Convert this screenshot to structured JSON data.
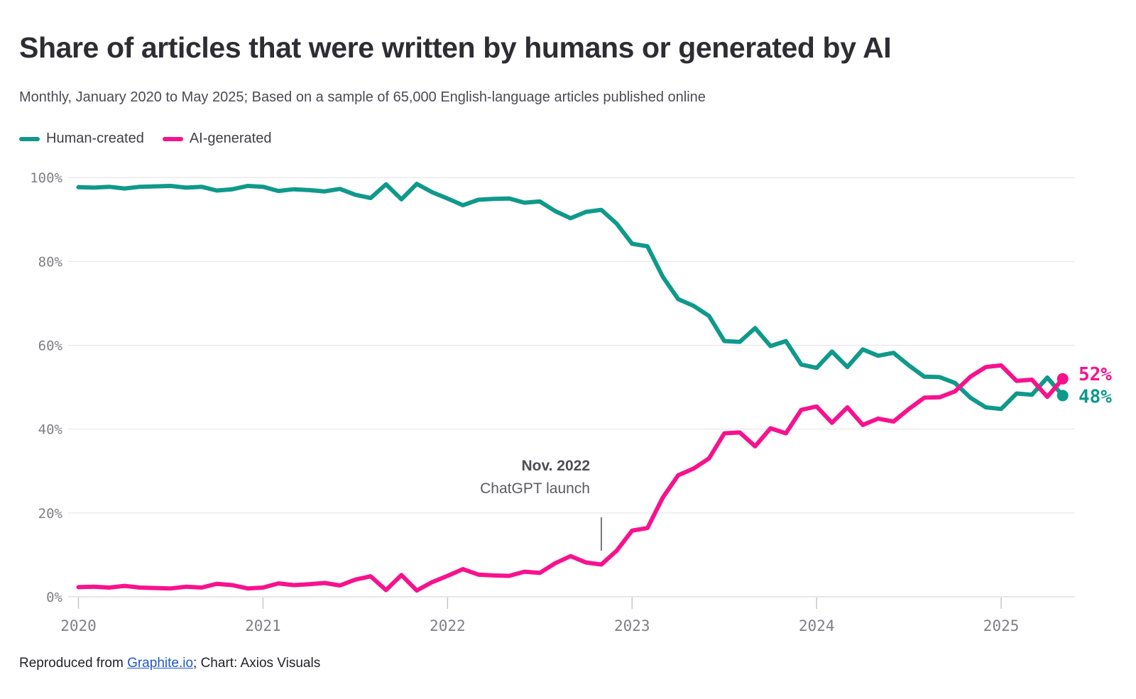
{
  "header": {
    "title": "Share of articles that were written by humans or generated by AI",
    "subtitle": "Monthly, January 2020 to May 2025; Based on a sample of 65,000 English-language articles published online"
  },
  "legend": [
    {
      "label": "Human-created",
      "color": "#0f998b"
    },
    {
      "label": "AI-generated",
      "color": "#f7128d"
    }
  ],
  "footer": {
    "prefix": "Reproduced from ",
    "link": "Graphite.io",
    "suffix": "; Chart: Axios Visuals"
  },
  "chart_data": {
    "type": "line",
    "title": "Share of articles that were written by humans or generated by AI",
    "x_unit": "month",
    "x_start": "2020-01",
    "x_end": "2025-05",
    "n_points": 65,
    "ylim": [
      0,
      100
    ],
    "grid": "horizontal",
    "legend_position": "top-left",
    "y_ticks": {
      "values": [
        0,
        20,
        40,
        60,
        80,
        100
      ],
      "labels": [
        "0%",
        "20%",
        "40%",
        "60%",
        "80%",
        "100%"
      ]
    },
    "x_ticks": {
      "month_indices": [
        0,
        12,
        24,
        36,
        48,
        60
      ],
      "labels": [
        "2020",
        "2021",
        "2022",
        "2023",
        "2024",
        "2025"
      ]
    },
    "series": [
      {
        "name": "Human-created",
        "color": "#0f998b",
        "end_label": "48%",
        "end_value": 48,
        "values": [
          97.7,
          97.6,
          97.8,
          97.4,
          97.8,
          97.9,
          98.0,
          97.6,
          97.8,
          96.9,
          97.2,
          98.0,
          97.8,
          96.8,
          97.2,
          97.0,
          96.7,
          97.3,
          95.9,
          95.1,
          98.4,
          94.8,
          98.5,
          96.5,
          95.0,
          93.4,
          94.7,
          94.9,
          95.0,
          94.0,
          94.3,
          92.0,
          90.3,
          91.8,
          92.3,
          89.0,
          84.2,
          83.6,
          76.3,
          71.0,
          69.4,
          67.0,
          61.0,
          60.8,
          64.1,
          59.8,
          61.0,
          55.4,
          54.6,
          58.5,
          54.8,
          59.0,
          57.5,
          58.2,
          55.2,
          52.5,
          52.4,
          51.0,
          47.5,
          45.2,
          44.8,
          48.5,
          48.2,
          52.3,
          48.0
        ]
      },
      {
        "name": "AI-generated",
        "color": "#f7128d",
        "end_label": "52%",
        "end_value": 52,
        "values": [
          2.3,
          2.4,
          2.2,
          2.6,
          2.2,
          2.1,
          2.0,
          2.4,
          2.2,
          3.1,
          2.8,
          2.0,
          2.2,
          3.2,
          2.8,
          3.0,
          3.3,
          2.7,
          4.1,
          4.9,
          1.6,
          5.2,
          1.5,
          3.5,
          5.0,
          6.6,
          5.3,
          5.1,
          5.0,
          6.0,
          5.7,
          8.0,
          9.7,
          8.2,
          7.7,
          11.0,
          15.8,
          16.4,
          23.7,
          29.0,
          30.6,
          33.0,
          39.0,
          39.2,
          35.9,
          40.2,
          39.0,
          44.6,
          45.4,
          41.5,
          45.2,
          41.0,
          42.5,
          41.8,
          44.8,
          47.5,
          47.6,
          49.0,
          52.5,
          54.8,
          55.2,
          51.5,
          51.8,
          47.7,
          52.0
        ]
      }
    ],
    "annotation": {
      "line1": "Nov. 2022",
      "line2": "ChatGPT launch",
      "month_index": 34
    },
    "colors": {
      "grid": "#e3e3e7",
      "baseline": "#d0d0d5",
      "tick": "#c6c6cb",
      "axis_text": "#7e7e86",
      "annotation_tick": "#4a4a52"
    }
  }
}
